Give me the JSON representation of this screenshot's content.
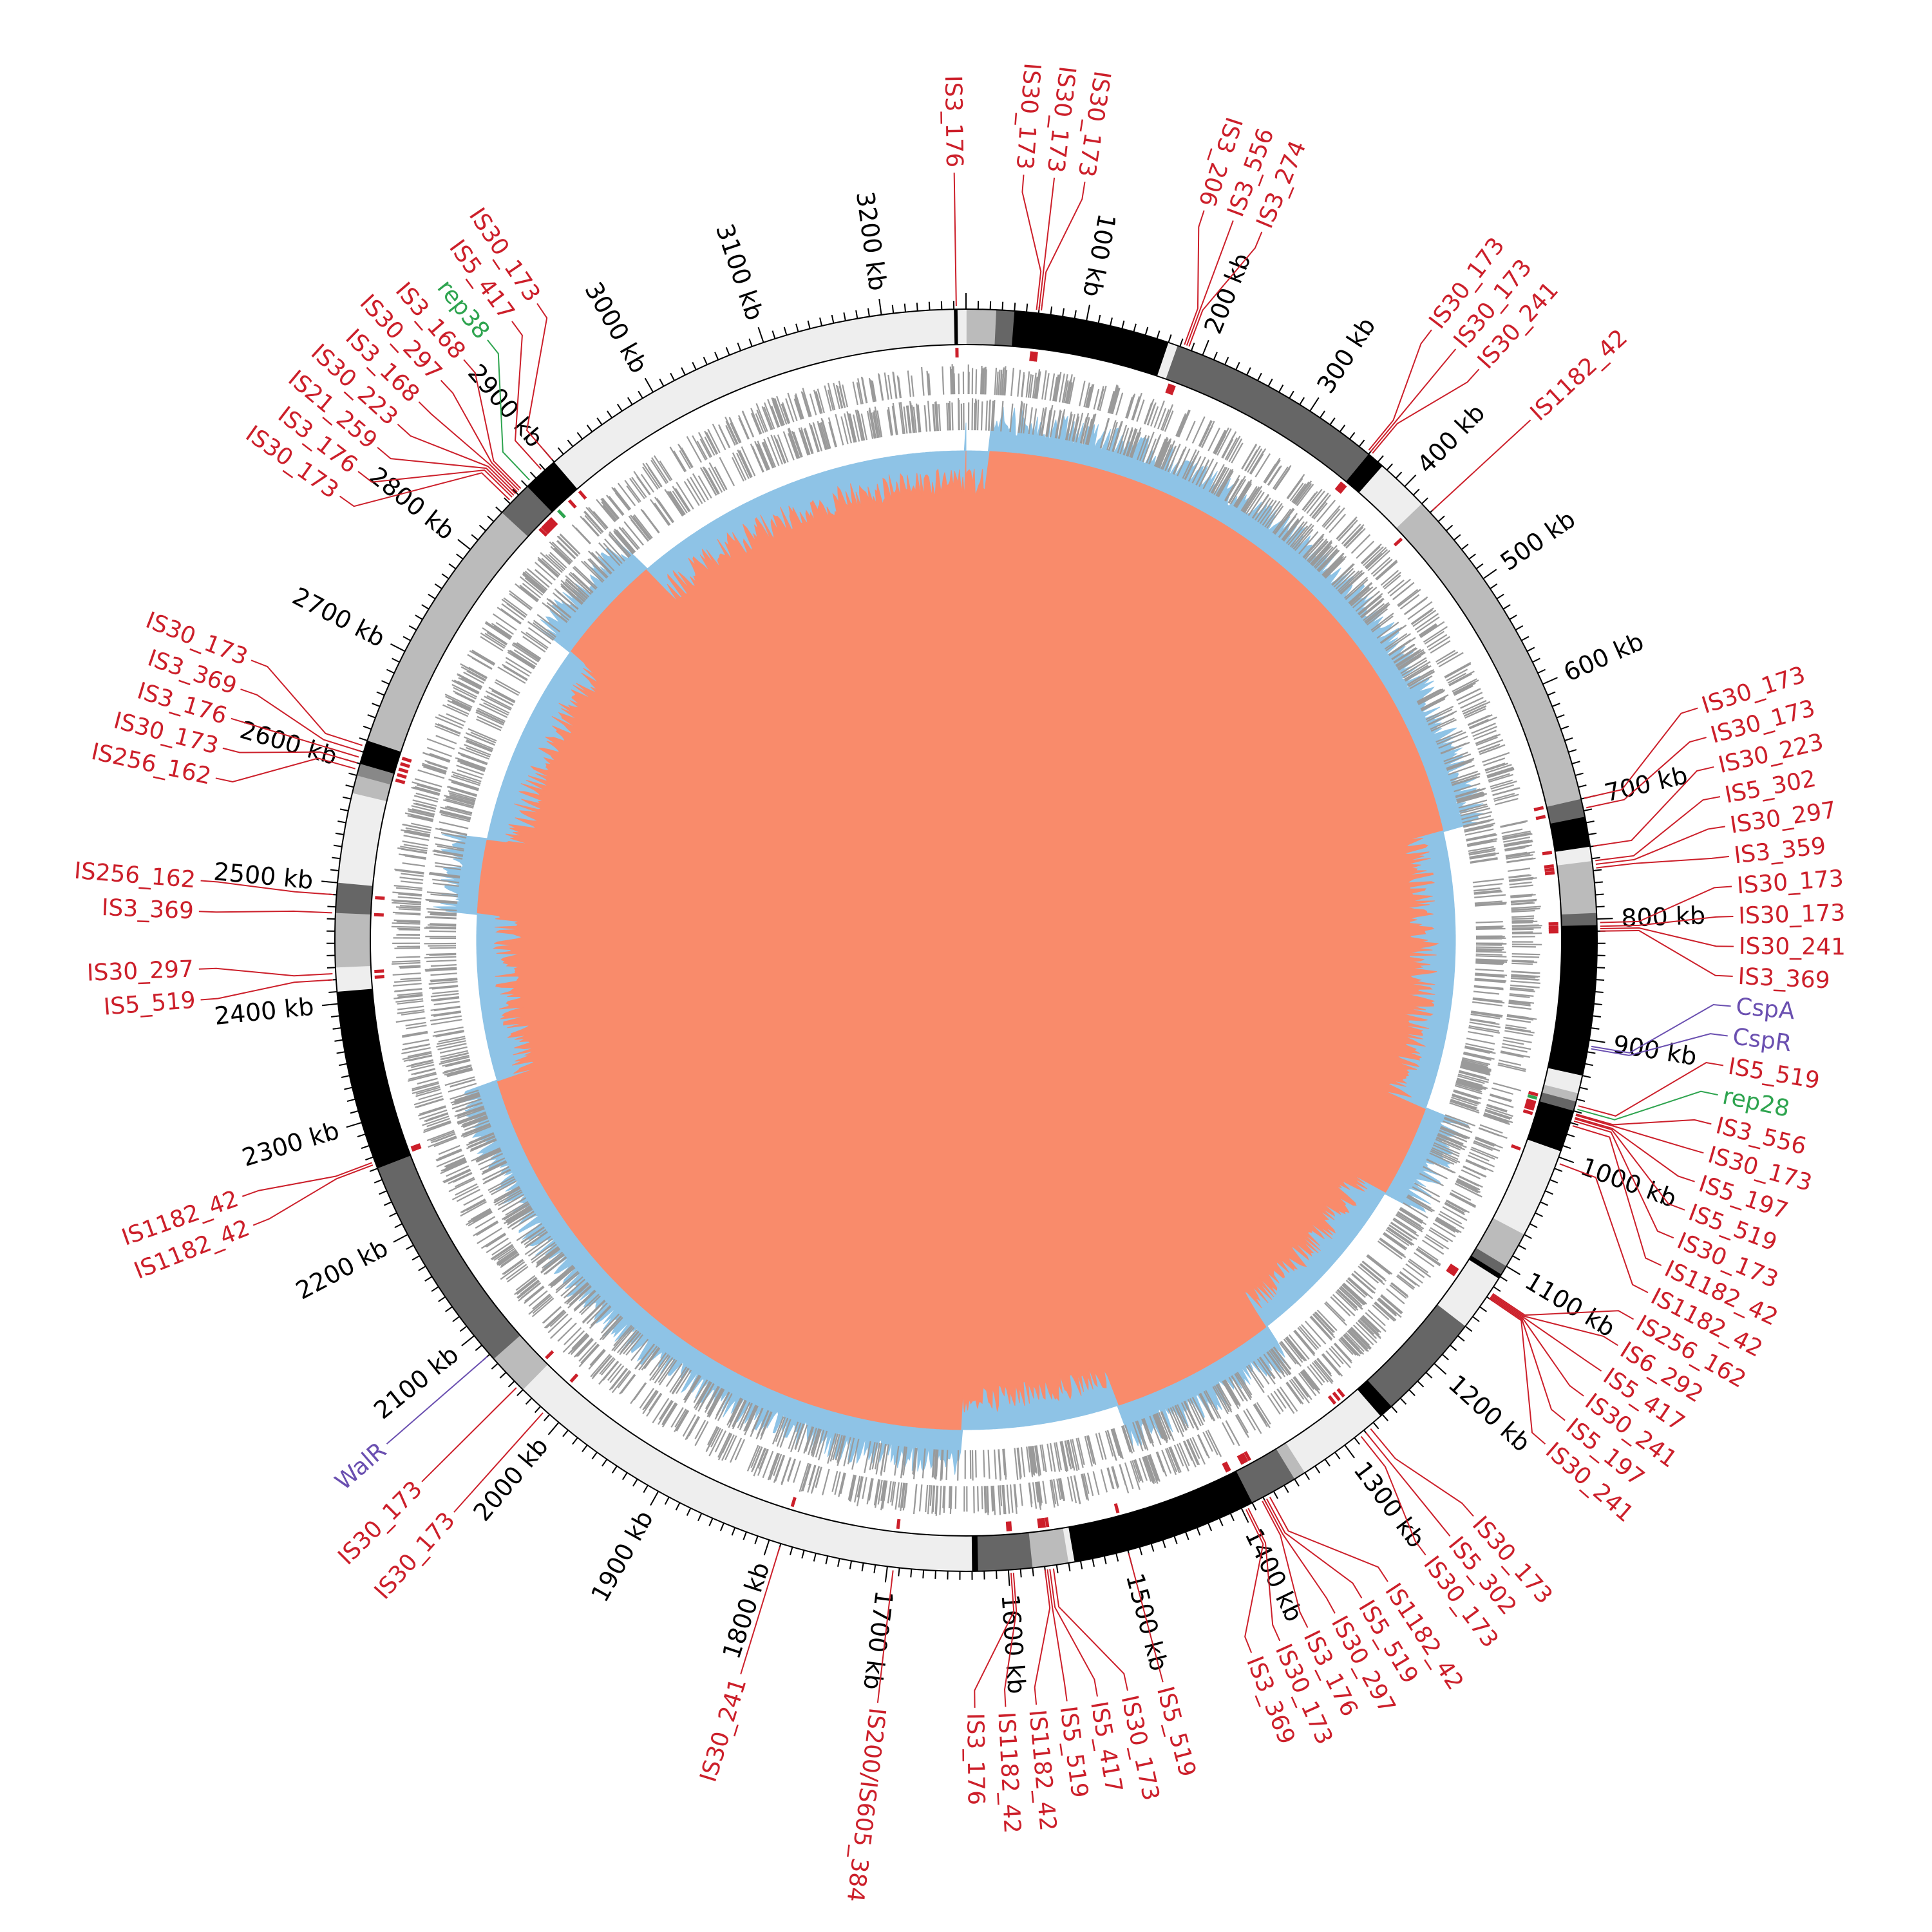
{
  "genome": {
    "length_kb": 3270,
    "tick_labels": [
      "100 kb",
      "200 kb",
      "300 kb",
      "400 kb",
      "500 kb",
      "600 kb",
      "700 kb",
      "800 kb",
      "900 kb",
      "1000 kb",
      "1100 kb",
      "1200 kb",
      "1300 kb",
      "1400 kb",
      "1500 kb",
      "1600 kb",
      "1700 kb",
      "1800 kb",
      "1900 kb",
      "2000 kb",
      "2100 kb",
      "2200 kb",
      "2300 kb",
      "2400 kb",
      "2500 kb",
      "2600 kb",
      "2700 kb",
      "2800 kb",
      "2900 kb",
      "3000 kb",
      "3100 kb",
      "3200 kb"
    ],
    "tick_positions_kb": [
      100,
      200,
      300,
      400,
      500,
      600,
      700,
      800,
      900,
      1000,
      1100,
      1200,
      1300,
      1400,
      1500,
      1600,
      1700,
      1800,
      1900,
      2000,
      2100,
      2200,
      2300,
      2400,
      2500,
      2600,
      2700,
      2800,
      2900,
      3000,
      3100,
      3200
    ]
  },
  "colors": {
    "is_element": "#cc1f2a",
    "rep": "#2ea44f",
    "regulator": "#6a4fb0",
    "gc_skew_pos": "#8ec3e6",
    "gc_skew_neg": "#f98b6b",
    "gc_content": "#7fcc72",
    "gc_spike": "#5aa3d9",
    "inner_ring": "#083b7e",
    "inner_ring_light": "#1b6cb4",
    "genes": "#9a9a9a"
  },
  "bands": [
    [
      0,
      25,
      "#bbbbbb"
    ],
    [
      25,
      40,
      "#666666"
    ],
    [
      40,
      170,
      "#000000"
    ],
    [
      170,
      178,
      "#eeeeee"
    ],
    [
      178,
      360,
      "#666666"
    ],
    [
      360,
      375,
      "#000000"
    ],
    [
      375,
      420,
      "#eeeeee"
    ],
    [
      420,
      700,
      "#bbbbbb"
    ],
    [
      700,
      715,
      "#666666"
    ],
    [
      715,
      740,
      "#000000"
    ],
    [
      740,
      752,
      "#eeeeee"
    ],
    [
      752,
      795,
      "#bbbbbb"
    ],
    [
      795,
      805,
      "#666666"
    ],
    [
      805,
      930,
      "#000000"
    ],
    [
      930,
      945,
      "#eeeeee"
    ],
    [
      945,
      952,
      "#bbbbbb"
    ],
    [
      952,
      960,
      "#666666"
    ],
    [
      960,
      995,
      "#000000"
    ],
    [
      995,
      1070,
      "#eeeeee"
    ],
    [
      1070,
      1100,
      "#bbbbbb"
    ],
    [
      1100,
      1108,
      "#666666"
    ],
    [
      1108,
      1112,
      "#000000"
    ],
    [
      1112,
      1160,
      "#eeeeee"
    ],
    [
      1160,
      1250,
      "#666666"
    ],
    [
      1250,
      1262,
      "#000000"
    ],
    [
      1262,
      1340,
      "#eeeeee"
    ],
    [
      1340,
      1350,
      "#bbbbbb"
    ],
    [
      1350,
      1390,
      "#666666"
    ],
    [
      1390,
      1545,
      "#000000"
    ],
    [
      1545,
      1550,
      "#eeeeee"
    ],
    [
      1550,
      1580,
      "#bbbbbb"
    ],
    [
      1580,
      1625,
      "#666666"
    ],
    [
      1625,
      1630,
      "#000000"
    ],
    [
      1630,
      2040,
      "#eeeeee"
    ],
    [
      2040,
      2075,
      "#bbbbbb"
    ],
    [
      2075,
      2260,
      "#666666"
    ],
    [
      2260,
      2410,
      "#000000"
    ],
    [
      2410,
      2430,
      "#eeeeee"
    ],
    [
      2430,
      2475,
      "#bbbbbb"
    ],
    [
      2475,
      2500,
      "#666666"
    ],
    [
      2500,
      2575,
      "#eeeeee"
    ],
    [
      2575,
      2590,
      "#bbbbbb"
    ],
    [
      2590,
      2600,
      "#888888"
    ],
    [
      2600,
      2620,
      "#000000"
    ],
    [
      2620,
      2840,
      "#bbbbbb"
    ],
    [
      2840,
      2870,
      "#666666"
    ],
    [
      2870,
      2900,
      "#000000"
    ],
    [
      2900,
      3260,
      "#eeeeee"
    ],
    [
      3260,
      3263,
      "#000000"
    ],
    [
      3263,
      3270,
      "#eeeeee"
    ]
  ],
  "features": [
    {
      "kb": 3262,
      "text": "IS3_176",
      "type": "is"
    },
    {
      "kb": 58,
      "text": "IS30_173",
      "type": "is"
    },
    {
      "kb": 60,
      "text": "IS30_173",
      "type": "is"
    },
    {
      "kb": 62,
      "text": "IS30_173",
      "type": "is"
    },
    {
      "kb": 183,
      "text": "IS3_206",
      "type": "is"
    },
    {
      "kb": 185,
      "text": "IS3_556",
      "type": "is"
    },
    {
      "kb": 187,
      "text": "IS3_274",
      "type": "is"
    },
    {
      "kb": 358,
      "text": "IS30_173",
      "type": "is"
    },
    {
      "kb": 360,
      "text": "IS30_173",
      "type": "is"
    },
    {
      "kb": 362,
      "text": "IS30_241",
      "type": "is"
    },
    {
      "kb": 430,
      "text": "IS1182_42",
      "type": "is"
    },
    {
      "kb": 700,
      "text": "IS30_173",
      "type": "is"
    },
    {
      "kb": 708,
      "text": "IS30_173",
      "type": "is"
    },
    {
      "kb": 740,
      "text": "IS30_223",
      "type": "is"
    },
    {
      "kb": 752,
      "text": "IS5_302",
      "type": "is"
    },
    {
      "kb": 755,
      "text": "IS30_297",
      "type": "is"
    },
    {
      "kb": 758,
      "text": "IS3_359",
      "type": "is"
    },
    {
      "kb": 803,
      "text": "IS30_173",
      "type": "is"
    },
    {
      "kb": 806,
      "text": "IS30_173",
      "type": "is"
    },
    {
      "kb": 808,
      "text": "IS30_241",
      "type": "is"
    },
    {
      "kb": 810,
      "text": "IS3_369",
      "type": "is"
    },
    {
      "kb": 905,
      "text": "CspA",
      "type": "reg"
    },
    {
      "kb": 907,
      "text": "CspR",
      "type": "reg"
    },
    {
      "kb": 955,
      "text": "IS5_519",
      "type": "is"
    },
    {
      "kb": 958,
      "text": "rep28",
      "type": "rep"
    },
    {
      "kb": 962,
      "text": "IS3_556",
      "type": "is"
    },
    {
      "kb": 963,
      "text": "IS30_173",
      "type": "is"
    },
    {
      "kb": 965,
      "text": "IS5_197",
      "type": "is"
    },
    {
      "kb": 966,
      "text": "IS5_519",
      "type": "is"
    },
    {
      "kb": 968,
      "text": "IS30_173",
      "type": "is"
    },
    {
      "kb": 972,
      "text": "IS1182_42",
      "type": "is"
    },
    {
      "kb": 1005,
      "text": "IS1182_42",
      "type": "is"
    },
    {
      "kb": 1125,
      "text": "IS256_162",
      "type": "is"
    },
    {
      "kb": 1126,
      "text": "IS6_292",
      "type": "is"
    },
    {
      "kb": 1127,
      "text": "IS5_417",
      "type": "is"
    },
    {
      "kb": 1128,
      "text": "IS30_241",
      "type": "is"
    },
    {
      "kb": 1129,
      "text": "IS5_197",
      "type": "is"
    },
    {
      "kb": 1130,
      "text": "IS30_241",
      "type": "is"
    },
    {
      "kb": 1275,
      "text": "IS30_173",
      "type": "is"
    },
    {
      "kb": 1280,
      "text": "IS5_302",
      "type": "is"
    },
    {
      "kb": 1285,
      "text": "IS30_173",
      "type": "is"
    },
    {
      "kb": 1375,
      "text": "IS1182_42",
      "type": "is"
    },
    {
      "kb": 1378,
      "text": "IS5_519",
      "type": "is"
    },
    {
      "kb": 1380,
      "text": "IS30_297",
      "type": "is"
    },
    {
      "kb": 1382,
      "text": "IS3_176",
      "type": "is"
    },
    {
      "kb": 1395,
      "text": "IS30_173",
      "type": "is"
    },
    {
      "kb": 1397,
      "text": "IS3_369",
      "type": "is"
    },
    {
      "kb": 1500,
      "text": "IS5_519",
      "type": "is"
    },
    {
      "kb": 1563,
      "text": "IS30_173",
      "type": "is"
    },
    {
      "kb": 1566,
      "text": "IS5_417",
      "type": "is"
    },
    {
      "kb": 1568,
      "text": "IS5_519",
      "type": "is"
    },
    {
      "kb": 1570,
      "text": "IS1182_42",
      "type": "is"
    },
    {
      "kb": 1596,
      "text": "IS1182_42",
      "type": "is"
    },
    {
      "kb": 1598,
      "text": "IS3_176",
      "type": "is"
    },
    {
      "kb": 1695,
      "text": "IS200/IS605_384",
      "type": "is"
    },
    {
      "kb": 1790,
      "text": "IS30_241",
      "type": "is"
    },
    {
      "kb": 2015,
      "text": "IS30_173",
      "type": "is"
    },
    {
      "kb": 2045,
      "text": "IS30_173",
      "type": "is"
    },
    {
      "kb": 2080,
      "text": "WalR",
      "type": "reg"
    },
    {
      "kb": 2264,
      "text": "IS1182_42",
      "type": "is"
    },
    {
      "kb": 2266,
      "text": "IS1182_42",
      "type": "is"
    },
    {
      "kb": 2420,
      "text": "IS5_519",
      "type": "is"
    },
    {
      "kb": 2425,
      "text": "IS30_297",
      "type": "is"
    },
    {
      "kb": 2475,
      "text": "IS3_369",
      "type": "is"
    },
    {
      "kb": 2490,
      "text": "IS256_162",
      "type": "is"
    },
    {
      "kb": 2595,
      "text": "IS256_162",
      "type": "is"
    },
    {
      "kb": 2600,
      "text": "IS30_173",
      "type": "is"
    },
    {
      "kb": 2605,
      "text": "IS3_176",
      "type": "is"
    },
    {
      "kb": 2610,
      "text": "IS3_369",
      "type": "is"
    },
    {
      "kb": 2615,
      "text": "IS30_173",
      "type": "is"
    },
    {
      "kb": 2852,
      "text": "IS30_173",
      "type": "is"
    },
    {
      "kb": 2855,
      "text": "IS3_176",
      "type": "is"
    },
    {
      "kb": 2857,
      "text": "IS21_259",
      "type": "is"
    },
    {
      "kb": 2859,
      "text": "IS30_223",
      "type": "is"
    },
    {
      "kb": 2861,
      "text": "IS3_168",
      "type": "is"
    },
    {
      "kb": 2863,
      "text": "IS30_297",
      "type": "is"
    },
    {
      "kb": 2865,
      "text": "IS3_168",
      "type": "is"
    },
    {
      "kb": 2875,
      "text": "rep38",
      "type": "rep"
    },
    {
      "kb": 2888,
      "text": "IS5_417",
      "type": "is"
    },
    {
      "kb": 2900,
      "text": "IS30_173",
      "type": "is"
    }
  ]
}
